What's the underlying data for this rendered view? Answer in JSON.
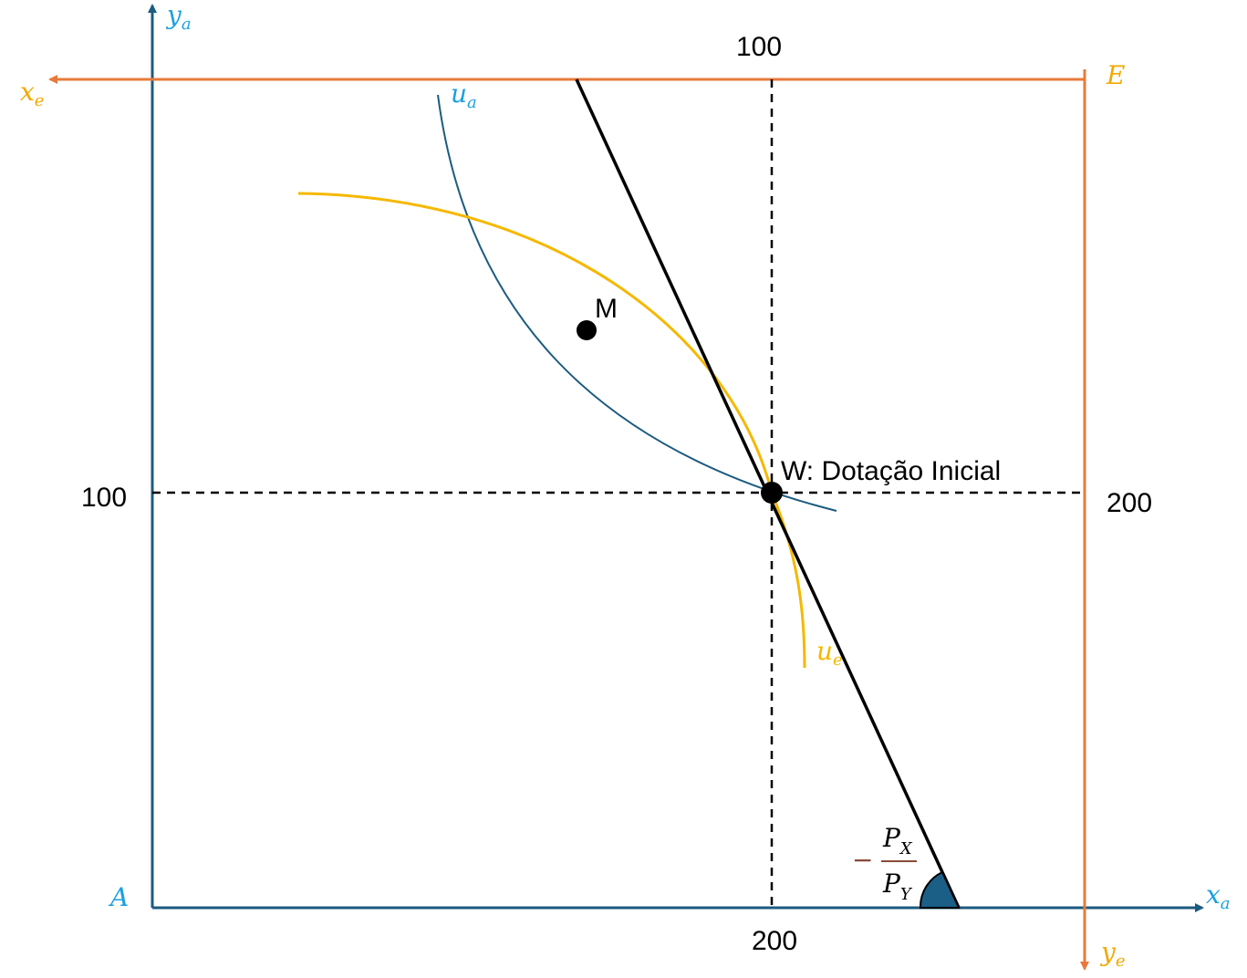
{
  "axes": {
    "a_origin": "A",
    "a_x": "x",
    "a_x_sub": "a",
    "a_y": "y",
    "a_y_sub": "a",
    "e_origin": "E",
    "e_x": "x",
    "e_x_sub": "e",
    "e_y": "y",
    "e_y_sub": "e"
  },
  "ticks": {
    "top_x": "100",
    "left_y": "100",
    "right_y": "200",
    "bottom_x": "200"
  },
  "curves": {
    "ua_label": "u",
    "ua_sub": "a",
    "ue_label": "u",
    "ue_sub": "e"
  },
  "points": {
    "m_label": "M",
    "w_label": "W: Dotação Inicial"
  },
  "slope": {
    "minus": "−",
    "num": "P",
    "num_sub": "X",
    "den": "P",
    "den_sub": "Y"
  },
  "colors": {
    "agent_a": "#1c5b80",
    "agent_a_label": "#1aa1df",
    "agent_e": "#e8793a",
    "agent_e_label": "#f2a900",
    "indiff_e": "#f5b800",
    "budget": "#000000",
    "angle_fill": "#1b5e86"
  }
}
